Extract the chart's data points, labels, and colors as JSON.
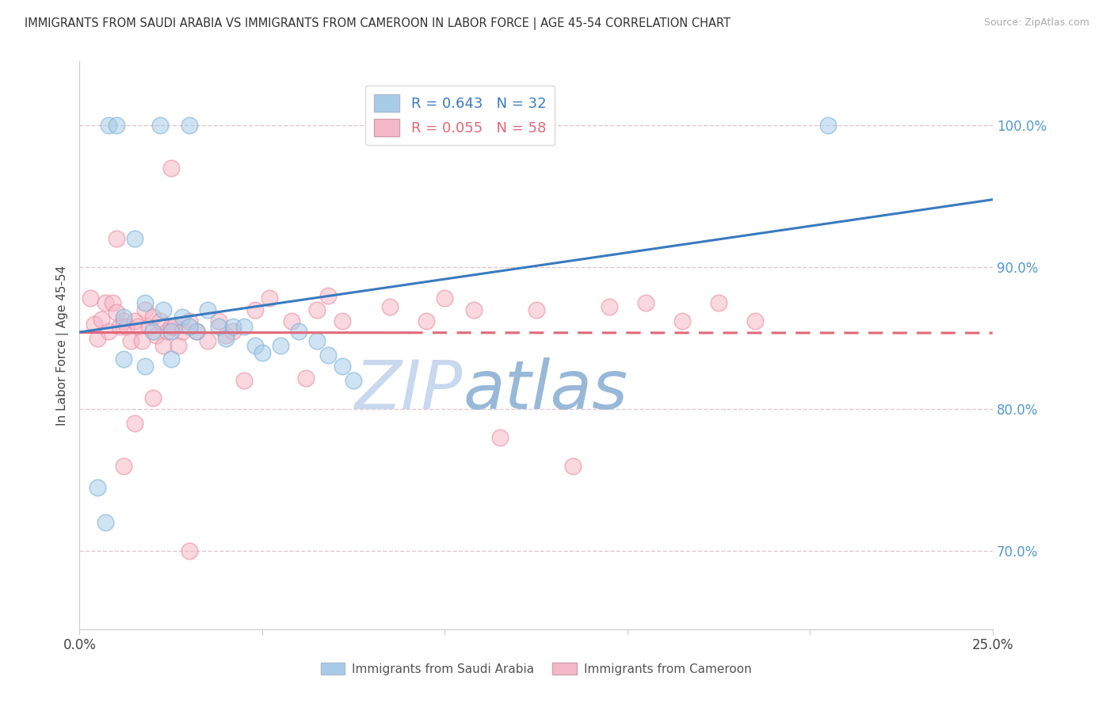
{
  "title": "IMMIGRANTS FROM SAUDI ARABIA VS IMMIGRANTS FROM CAMEROON IN LABOR FORCE | AGE 45-54 CORRELATION CHART",
  "source": "Source: ZipAtlas.com",
  "ylabel": "In Labor Force | Age 45-54",
  "y_ticks": [
    0.7,
    0.8,
    0.9,
    1.0
  ],
  "y_tick_labels": [
    "70.0%",
    "80.0%",
    "90.0%",
    "100.0%"
  ],
  "x_min": 0.0,
  "x_max": 0.25,
  "y_min": 0.645,
  "y_max": 1.045,
  "saudi_color_face": "#a8cce8",
  "saudi_color_edge": "#7aafd4",
  "cameroon_color_face": "#f5b8c8",
  "cameroon_color_edge": "#e88aa0",
  "saudi_line_color": "#3a7abf",
  "cameroon_line_color": "#e06878",
  "watermark_zip": "ZIP",
  "watermark_atlas": "atlas",
  "watermark_color_zip": "#c8d8ee",
  "watermark_color_atlas": "#98b8d8",
  "background_color": "#ffffff",
  "grid_color": "#e0c8d0",
  "title_color": "#333333",
  "right_axis_label_color": "#5599cc",
  "legend_saudi_color": "#a8cce8",
  "legend_cameroon_color": "#f5b8c8",
  "saudi_R": "0.643",
  "saudi_N": "32",
  "cameroon_R": "0.055",
  "cameroon_N": "58",
  "saudi_scatter_x": [
    0.005,
    0.007,
    0.022,
    0.03,
    0.008,
    0.01,
    0.012,
    0.015,
    0.018,
    0.02,
    0.023,
    0.025,
    0.028,
    0.032,
    0.035,
    0.038,
    0.04,
    0.042,
    0.045,
    0.048,
    0.05,
    0.055,
    0.06,
    0.065,
    0.068,
    0.072,
    0.075,
    0.012,
    0.018,
    0.025,
    0.03,
    0.205
  ],
  "saudi_scatter_y": [
    0.745,
    0.72,
    1.0,
    1.0,
    1.0,
    1.0,
    0.865,
    0.92,
    0.875,
    0.855,
    0.87,
    0.855,
    0.865,
    0.855,
    0.87,
    0.858,
    0.85,
    0.858,
    0.858,
    0.845,
    0.84,
    0.845,
    0.855,
    0.848,
    0.838,
    0.83,
    0.82,
    0.835,
    0.83,
    0.835,
    0.858,
    1.0
  ],
  "cameroon_scatter_x": [
    0.003,
    0.004,
    0.005,
    0.006,
    0.007,
    0.008,
    0.009,
    0.01,
    0.011,
    0.012,
    0.013,
    0.014,
    0.015,
    0.016,
    0.017,
    0.018,
    0.019,
    0.02,
    0.021,
    0.022,
    0.023,
    0.024,
    0.025,
    0.026,
    0.027,
    0.028,
    0.03,
    0.032,
    0.035,
    0.038,
    0.04,
    0.042,
    0.045,
    0.048,
    0.052,
    0.058,
    0.062,
    0.065,
    0.068,
    0.072,
    0.085,
    0.095,
    0.108,
    0.115,
    0.125,
    0.135,
    0.145,
    0.155,
    0.165,
    0.175,
    0.185,
    0.01,
    0.012,
    0.015,
    0.02,
    0.025,
    0.03,
    0.1
  ],
  "cameroon_scatter_y": [
    0.878,
    0.86,
    0.85,
    0.863,
    0.875,
    0.855,
    0.875,
    0.868,
    0.858,
    0.862,
    0.858,
    0.848,
    0.862,
    0.858,
    0.848,
    0.87,
    0.858,
    0.865,
    0.852,
    0.862,
    0.845,
    0.855,
    0.858,
    0.858,
    0.845,
    0.855,
    0.862,
    0.855,
    0.848,
    0.862,
    0.852,
    0.855,
    0.82,
    0.87,
    0.878,
    0.862,
    0.822,
    0.87,
    0.88,
    0.862,
    0.872,
    0.862,
    0.87,
    0.78,
    0.87,
    0.76,
    0.872,
    0.875,
    0.862,
    0.875,
    0.862,
    0.92,
    0.76,
    0.79,
    0.808,
    0.97,
    0.7,
    0.878
  ]
}
